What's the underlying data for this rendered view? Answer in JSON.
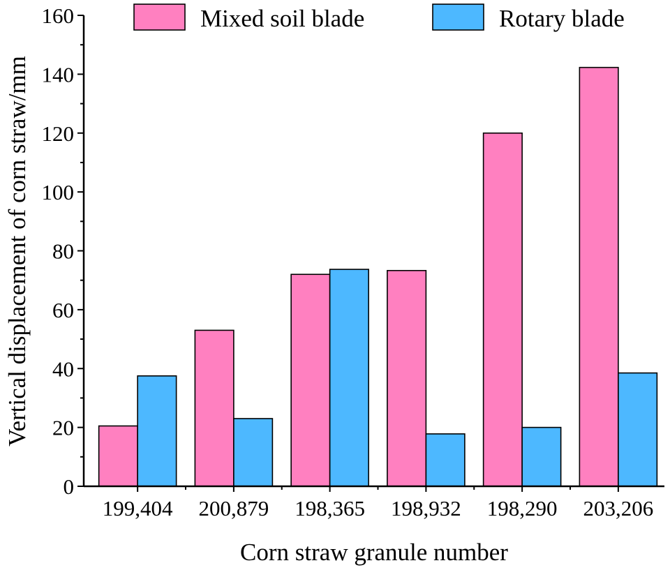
{
  "chart_data": {
    "type": "bar",
    "xlabel": "Corn straw granule number",
    "ylabel": "Vertical displacement of corn straw/mm",
    "ylim": [
      0,
      160
    ],
    "yticks": [
      0,
      20,
      40,
      60,
      80,
      100,
      120,
      140,
      160
    ],
    "categories": [
      "199,404",
      "200,879",
      "198,365",
      "198,932",
      "198,290",
      "203,206"
    ],
    "series": [
      {
        "name": "Mixed soil blade",
        "color": "#ff80c0",
        "values": [
          20.5,
          53,
          72,
          73.3,
          120,
          142.3
        ]
      },
      {
        "name": "Rotary blade",
        "color": "#4db8ff",
        "values": [
          37.5,
          23,
          73.7,
          17.8,
          20,
          38.5
        ]
      }
    ],
    "legend_position": "top",
    "grid": false
  }
}
